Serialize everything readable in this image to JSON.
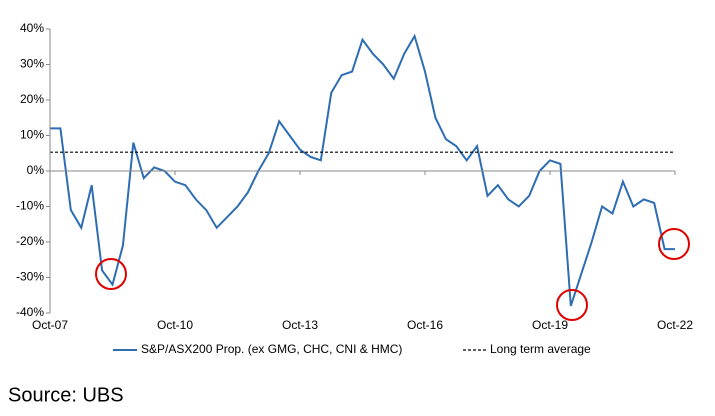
{
  "chart_data": {
    "type": "line",
    "x": [
      "Oct-07",
      "Jan-08",
      "Apr-08",
      "Jul-08",
      "Oct-08",
      "Jan-09",
      "Apr-09",
      "Jul-09",
      "Oct-09",
      "Jan-10",
      "Apr-10",
      "Jul-10",
      "Oct-10",
      "Jan-11",
      "Apr-11",
      "Jul-11",
      "Oct-11",
      "Jan-12",
      "Apr-12",
      "Jul-12",
      "Oct-12",
      "Jan-13",
      "Apr-13",
      "Jul-13",
      "Oct-13",
      "Jan-14",
      "Apr-14",
      "Jul-14",
      "Oct-14",
      "Jan-15",
      "Apr-15",
      "Jul-15",
      "Oct-15",
      "Jan-16",
      "Apr-16",
      "Jul-16",
      "Oct-16",
      "Jan-17",
      "Apr-17",
      "Jul-17",
      "Oct-17",
      "Jan-18",
      "Apr-18",
      "Jul-18",
      "Oct-18",
      "Jan-19",
      "Apr-19",
      "Jul-19",
      "Oct-19",
      "Jan-20",
      "Apr-20",
      "Jul-20",
      "Oct-20",
      "Jan-21",
      "Apr-21",
      "Jul-21",
      "Oct-21",
      "Jan-22",
      "Apr-22",
      "Jul-22",
      "Oct-22"
    ],
    "series": [
      {
        "name": "S&P/ASX200 Prop. (ex GMG, CHC, CNI & HMC)",
        "color": "#2e6db4",
        "values": [
          12,
          12,
          -11,
          -16,
          -4,
          -28,
          -32,
          -21,
          8,
          -2,
          1,
          0,
          -3,
          -4,
          -8,
          -11,
          -16,
          -13,
          -10,
          -6,
          0,
          5,
          14,
          10,
          6,
          4,
          3,
          22,
          27,
          28,
          37,
          33,
          30,
          26,
          33,
          38,
          28,
          15,
          9,
          7,
          3,
          7,
          -7,
          -4,
          -8,
          -10,
          -7,
          0,
          3,
          2,
          -38,
          -29,
          -20,
          -10,
          -12,
          -3,
          -10,
          -8,
          -9,
          -22,
          -22
        ]
      }
    ],
    "average": {
      "name": "Long term average",
      "value": 5.3,
      "color": "#000000"
    },
    "xticks": [
      "Oct-07",
      "Oct-10",
      "Oct-13",
      "Oct-16",
      "Oct-19",
      "Oct-22"
    ],
    "ylim": [
      -40,
      40
    ],
    "yticks": [
      {
        "value": -40,
        "label": "-40%"
      },
      {
        "value": -30,
        "label": "-30%"
      },
      {
        "value": -20,
        "label": "-20%"
      },
      {
        "value": -10,
        "label": "-10%"
      },
      {
        "value": 0,
        "label": "0%"
      },
      {
        "value": 10,
        "label": "10%"
      },
      {
        "value": 20,
        "label": "20%"
      },
      {
        "value": 30,
        "label": "30%"
      },
      {
        "value": 40,
        "label": "40%"
      }
    ],
    "source": "Source: UBS"
  }
}
